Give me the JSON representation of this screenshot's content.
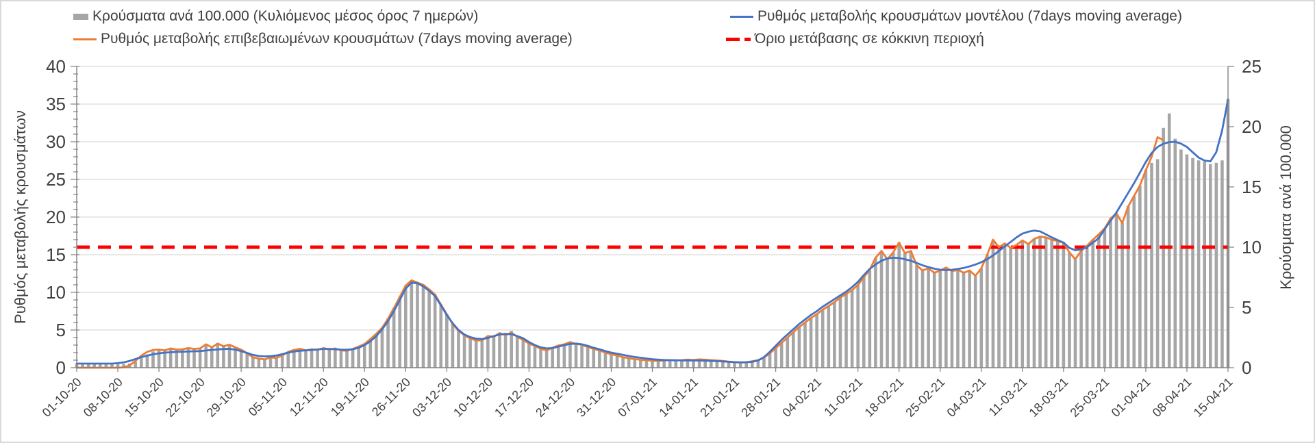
{
  "legend": {
    "items": [
      {
        "label": "Κρούσματα ανά 100.000 (Κυλιόμενος μέσος όρος 7 ημερών)",
        "swatch": "bar",
        "color": "#a6a6a6"
      },
      {
        "label": "Ρυθμός μεταβολής επιβεβαιωμένων κρουσμάτων (7days moving average)",
        "swatch": "line",
        "color": "#ed7d31"
      },
      {
        "label": "Ρυθμός μεταβολής κρουσμάτων μοντέλου (7days moving average)",
        "swatch": "line",
        "color": "#4472c4"
      },
      {
        "label": "Όριο μετάβασης σε κόκκινη περιοχή",
        "swatch": "dash",
        "color": "#ff0000"
      }
    ]
  },
  "chart_data": {
    "type": "combo-bar-line",
    "left_axis": {
      "title": "Ρυθμός μεταβολής κρουσμάτων",
      "min": 0,
      "max": 40,
      "major_step": 5,
      "minor_step": 1,
      "ticks": [
        0,
        5,
        10,
        15,
        20,
        25,
        30,
        35,
        40
      ]
    },
    "right_axis": {
      "title": "Κρούσματα ανά 100.000",
      "min": 0,
      "max": 25,
      "major_step": 5,
      "ticks": [
        0,
        5,
        10,
        15,
        20,
        25
      ]
    },
    "x_tick_labels": [
      "01-10-20",
      "08-10-20",
      "15-10-20",
      "22-10-20",
      "29-10-20",
      "05-11-20",
      "12-11-20",
      "19-11-20",
      "26-11-20",
      "03-12-20",
      "10-12-20",
      "17-12-20",
      "24-12-20",
      "31-12-20",
      "07-01-21",
      "14-01-21",
      "21-01-21",
      "28-01-21",
      "04-02-21",
      "11-02-21",
      "18-02-21",
      "25-02-21",
      "04-03-21",
      "11-03-21",
      "18-03-21",
      "25-03-21",
      "01-04-21",
      "08-04-21",
      "15-04-21"
    ],
    "days_per_tick": 7,
    "grid_color": "#d9d9d9",
    "axis_color": "#808080",
    "text_color": "#404040",
    "threshold": {
      "name": "Όριο μετάβασης σε κόκκινη περιοχή",
      "axis": "right",
      "value": 10,
      "left_axis_equivalent": 16,
      "color": "#ff0000"
    },
    "series": [
      {
        "name": "Κρούσματα ανά 100.000 (Κυλιόμενος μέσος όρος 7 ημερών)",
        "type": "bar",
        "axis": "right",
        "color": "#a6a6a6",
        "values": [
          0.3,
          0.3,
          0.3,
          0.3,
          0.3,
          0.3,
          0.3,
          0.3,
          0.3,
          0.35,
          0.5,
          0.8,
          1.1,
          1.35,
          1.45,
          1.4,
          1.55,
          1.45,
          1.5,
          1.6,
          1.55,
          1.6,
          1.95,
          1.7,
          2.05,
          1.8,
          1.9,
          1.7,
          1.5,
          1.2,
          0.9,
          0.75,
          0.7,
          0.85,
          0.8,
          1.05,
          1.3,
          1.5,
          1.6,
          1.45,
          1.55,
          1.5,
          1.65,
          1.5,
          1.6,
          1.45,
          1.4,
          1.55,
          1.75,
          2.0,
          2.4,
          2.85,
          3.3,
          4.1,
          4.95,
          5.9,
          6.8,
          7.25,
          7.1,
          6.9,
          6.5,
          6.1,
          5.25,
          4.45,
          3.65,
          3.05,
          2.7,
          2.45,
          2.25,
          2.3,
          2.6,
          2.55,
          2.9,
          2.7,
          3.05,
          2.6,
          2.3,
          2.0,
          1.8,
          1.55,
          1.45,
          1.65,
          1.85,
          1.95,
          2.15,
          1.95,
          1.9,
          1.7,
          1.55,
          1.45,
          1.25,
          1.1,
          1.0,
          0.9,
          0.8,
          0.7,
          0.65,
          0.6,
          0.58,
          0.56,
          0.6,
          0.62,
          0.6,
          0.62,
          0.68,
          0.64,
          0.68,
          0.66,
          0.62,
          0.6,
          0.56,
          0.5,
          0.45,
          0.42,
          0.45,
          0.53,
          0.62,
          0.85,
          1.2,
          1.6,
          2.05,
          2.5,
          2.95,
          3.4,
          3.75,
          4.1,
          4.45,
          4.8,
          5.1,
          5.45,
          5.8,
          6.1,
          6.45,
          6.9,
          7.5,
          8.1,
          9.1,
          9.7,
          9.0,
          9.55,
          10.4,
          9.5,
          9.7,
          8.5,
          8.05,
          8.25,
          7.9,
          8.05,
          8.3,
          8.0,
          8.1,
          7.9,
          8.05,
          7.6,
          8.25,
          9.4,
          10.6,
          10.0,
          10.3,
          9.95,
          10.2,
          10.55,
          10.25,
          10.7,
          10.9,
          10.8,
          10.6,
          10.5,
          10.4,
          9.55,
          9.0,
          9.7,
          10.1,
          10.6,
          11.05,
          11.55,
          12.4,
          12.8,
          12.0,
          13.4,
          14.25,
          15.1,
          16.4,
          17.0,
          17.3,
          19.9,
          21.1,
          19.0,
          18.1,
          17.7,
          17.4,
          17.2,
          17.1,
          16.9,
          17.0,
          17.2,
          22.3
        ]
      },
      {
        "name": "Ρυθμός μεταβολής επιβεβαιωμένων κρουσμάτων (7days moving average)",
        "type": "line",
        "axis": "left",
        "color": "#ed7d31",
        "values": [
          0,
          0,
          0,
          0,
          0,
          0,
          0,
          0,
          0.05,
          0.3,
          0.9,
          1.6,
          2.1,
          2.35,
          2.4,
          2.3,
          2.55,
          2.4,
          2.45,
          2.6,
          2.5,
          2.55,
          3.1,
          2.7,
          3.2,
          2.85,
          3.05,
          2.7,
          2.4,
          1.9,
          1.4,
          1.2,
          1.1,
          1.35,
          1.3,
          1.65,
          2.1,
          2.35,
          2.5,
          2.3,
          2.45,
          2.35,
          2.6,
          2.4,
          2.55,
          2.3,
          2.25,
          2.5,
          2.8,
          3.15,
          3.8,
          4.5,
          5.3,
          6.5,
          7.9,
          9.4,
          10.9,
          11.6,
          11.3,
          11.0,
          10.4,
          9.7,
          8.4,
          7.1,
          5.8,
          4.9,
          4.3,
          3.9,
          3.6,
          3.65,
          4.2,
          4.1,
          4.6,
          4.3,
          4.65,
          4.1,
          3.7,
          3.2,
          2.9,
          2.5,
          2.3,
          2.65,
          2.95,
          3.1,
          3.4,
          3.15,
          3.05,
          2.75,
          2.5,
          2.3,
          2.0,
          1.8,
          1.6,
          1.4,
          1.25,
          1.15,
          1.05,
          1.0,
          0.92,
          0.9,
          0.95,
          1.0,
          0.96,
          1.0,
          1.08,
          1.02,
          1.1,
          1.06,
          1.0,
          0.95,
          0.9,
          0.8,
          0.72,
          0.68,
          0.72,
          0.85,
          1.0,
          1.35,
          1.9,
          2.6,
          3.3,
          4.0,
          4.7,
          5.4,
          6.0,
          6.6,
          7.1,
          7.7,
          8.2,
          8.7,
          9.3,
          9.8,
          10.3,
          11.0,
          12.0,
          13.0,
          14.6,
          15.5,
          14.4,
          15.3,
          16.6,
          15.2,
          15.5,
          13.6,
          12.9,
          13.2,
          12.6,
          12.9,
          13.3,
          12.8,
          13.0,
          12.6,
          12.9,
          12.2,
          13.2,
          15.0,
          17.0,
          16.0,
          16.5,
          15.9,
          16.3,
          16.9,
          16.4,
          17.1,
          17.4,
          17.3,
          17.0,
          16.8,
          16.6,
          15.3,
          14.4,
          15.5,
          16.2,
          17.0,
          17.7,
          18.5,
          19.8,
          20.5,
          19.2,
          21.4,
          22.8,
          24.2,
          26.2,
          28.0,
          30.6,
          30.2,
          null,
          null,
          null,
          null,
          null,
          null,
          null,
          null,
          null,
          null,
          null
        ]
      },
      {
        "name": "Ρυθμός μεταβολής κρουσμάτων μοντέλου (7days moving average)",
        "type": "line",
        "axis": "left",
        "color": "#4472c4",
        "values": [
          0.55,
          0.55,
          0.55,
          0.55,
          0.55,
          0.55,
          0.55,
          0.6,
          0.7,
          0.9,
          1.15,
          1.4,
          1.6,
          1.78,
          1.9,
          2.0,
          2.05,
          2.1,
          2.12,
          2.15,
          2.18,
          2.2,
          2.28,
          2.35,
          2.42,
          2.48,
          2.5,
          2.4,
          2.2,
          1.95,
          1.7,
          1.55,
          1.5,
          1.52,
          1.62,
          1.8,
          2.0,
          2.15,
          2.25,
          2.3,
          2.35,
          2.42,
          2.5,
          2.5,
          2.45,
          2.4,
          2.38,
          2.45,
          2.65,
          3.0,
          3.5,
          4.2,
          5.1,
          6.2,
          7.5,
          9.0,
          10.5,
          11.3,
          11.2,
          10.8,
          10.2,
          9.5,
          8.3,
          7.0,
          5.9,
          5.0,
          4.4,
          4.05,
          3.85,
          3.8,
          3.95,
          4.2,
          4.4,
          4.5,
          4.45,
          4.2,
          3.9,
          3.4,
          3.0,
          2.7,
          2.55,
          2.6,
          2.8,
          3.0,
          3.15,
          3.2,
          3.1,
          2.9,
          2.65,
          2.45,
          2.2,
          2.0,
          1.85,
          1.7,
          1.55,
          1.42,
          1.32,
          1.22,
          1.12,
          1.06,
          1.02,
          1.0,
          0.98,
          0.96,
          0.95,
          0.95,
          0.95,
          0.93,
          0.9,
          0.87,
          0.83,
          0.78,
          0.74,
          0.72,
          0.72,
          0.78,
          0.95,
          1.4,
          2.1,
          2.9,
          3.7,
          4.4,
          5.1,
          5.8,
          6.4,
          7.0,
          7.5,
          8.1,
          8.6,
          9.1,
          9.6,
          10.1,
          10.7,
          11.4,
          12.3,
          13.1,
          13.7,
          14.2,
          14.5,
          14.6,
          14.55,
          14.4,
          14.2,
          13.9,
          13.6,
          13.35,
          13.15,
          13.0,
          12.95,
          13.0,
          13.1,
          13.25,
          13.45,
          13.7,
          14.0,
          14.4,
          14.9,
          15.5,
          16.1,
          16.7,
          17.3,
          17.8,
          18.05,
          18.2,
          18.1,
          17.7,
          17.3,
          16.95,
          16.6,
          15.9,
          15.6,
          15.7,
          16.0,
          16.6,
          17.2,
          18.4,
          19.5,
          20.6,
          21.9,
          23.2,
          24.5,
          25.9,
          27.3,
          28.5,
          29.3,
          29.75,
          29.95,
          30.0,
          29.75,
          29.3,
          28.6,
          27.9,
          27.5,
          27.4,
          28.6,
          31.5,
          35.6
        ]
      }
    ]
  }
}
